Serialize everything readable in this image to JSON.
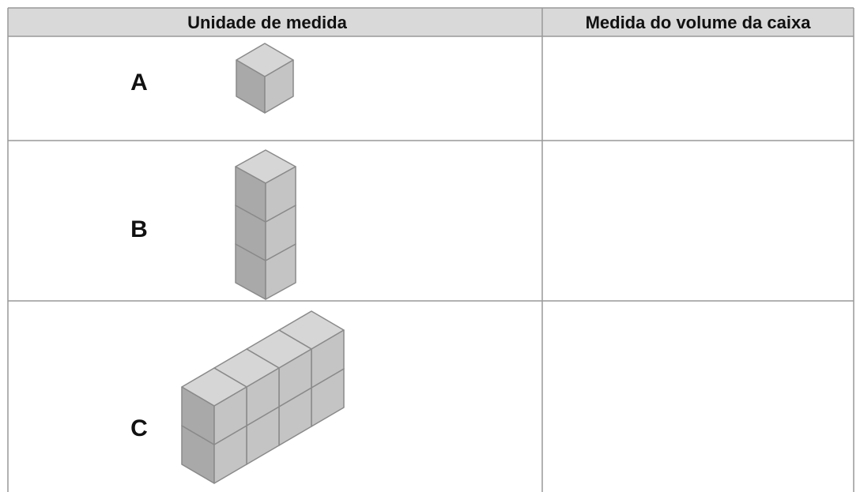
{
  "table": {
    "header": [
      "Unidade de medida",
      "Medida do volume da caixa"
    ],
    "rows": [
      {
        "label": "A"
      },
      {
        "label": "B"
      },
      {
        "label": "C"
      }
    ]
  }
}
